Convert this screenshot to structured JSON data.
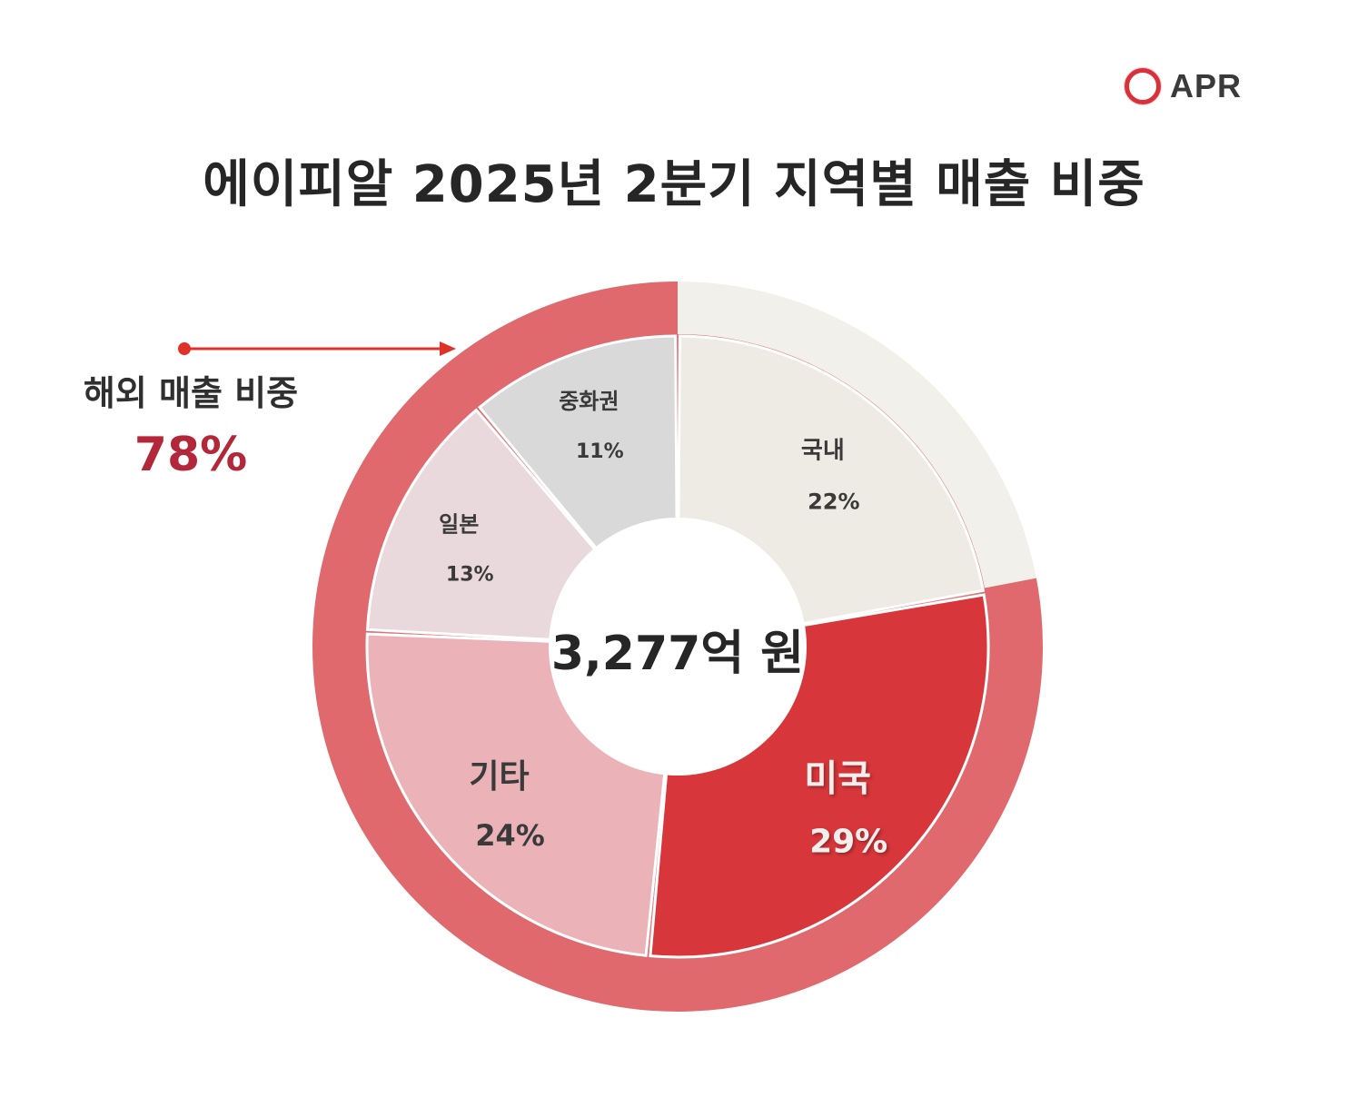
{
  "logo": {
    "text": "APR",
    "icon": "apr-ring-logo-icon",
    "color": "#d9303a"
  },
  "title": "에이피알 2025년 2분기 지역별 매출 비중",
  "callout": {
    "label": "해외 매출 비중",
    "value": "78%",
    "value_color": "#b3273a",
    "arrow_color": "#e03128"
  },
  "center_label": "3,277억 원",
  "colors": {
    "outer_overseas": "#e0696e",
    "outer_domestic": "#f1f0ea",
    "domestic": "#edebe3",
    "us": "#d7363a",
    "other": "#ebb3b8",
    "japan": "#e9d8dc",
    "china": "#d9d9d9"
  },
  "chart_data": {
    "type": "pie",
    "title": "에이피알 2025년 2분기 지역별 매출 비중",
    "total": "3,277억 원",
    "categories": [
      "국내",
      "미국",
      "기타",
      "일본",
      "중화권"
    ],
    "values": [
      22,
      29,
      24,
      13,
      11
    ],
    "labels": [
      "22%",
      "29%",
      "24%",
      "13%",
      "11%"
    ],
    "outer_ring": {
      "categories": [
        "국내",
        "해외"
      ],
      "values": [
        22,
        78
      ]
    },
    "annotation": "해외 매출 비중 78%",
    "legend": "none"
  }
}
